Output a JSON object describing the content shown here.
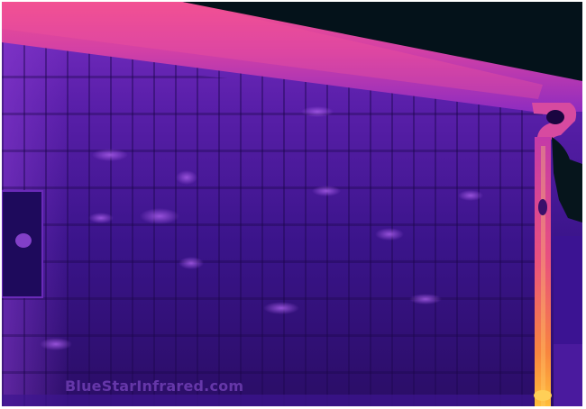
{
  "image": {
    "kind": "thermal-infrared-photo",
    "subject": "building facade with roof eave and downspout",
    "palette": "ironbow",
    "colors": {
      "sky": "#04121a",
      "cold_wall": "#2c0c6e",
      "warm_wall": "#7a2fc4",
      "eave_hot": "#f2508f",
      "eave_warm": "#c23ab6",
      "hottest": "#ffb23a"
    }
  },
  "watermark": {
    "text": "BlueStarInfrared.com"
  }
}
